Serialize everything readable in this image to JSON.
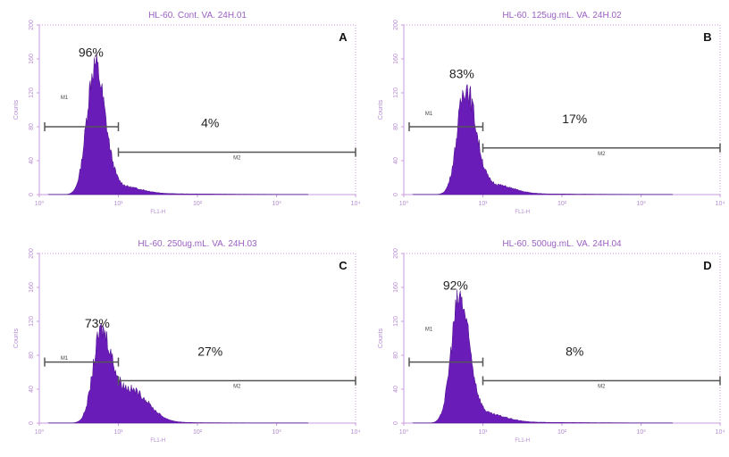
{
  "chart_data": [
    {
      "type": "histogram",
      "panel_letter": "A",
      "title": "HL-60. Cont. VA. 24H.01",
      "xlabel": "FL1-H",
      "ylabel": "Counts",
      "x_scale": "log",
      "xlim": [
        1,
        10000
      ],
      "ylim": [
        0,
        200
      ],
      "x_ticks": [
        "10⁰",
        "10¹",
        "10²",
        "10³",
        "10⁴"
      ],
      "y_ticks": [
        "0",
        "40",
        "80",
        "120",
        "160",
        "200"
      ],
      "peak": {
        "x": 5,
        "counts": 150
      },
      "shoulder": 0.05,
      "gates": [
        {
          "name": "M1",
          "x_start": 1,
          "x_end": 10,
          "level": 80,
          "percent": "96%"
        },
        {
          "name": "M2",
          "x_start": 10,
          "x_end": 10000,
          "level": 50,
          "percent": "4%"
        }
      ]
    },
    {
      "type": "histogram",
      "panel_letter": "B",
      "title": "HL-60. 125ug.mL. VA. 24H.02",
      "xlabel": "FL1-H",
      "ylabel": "Counts",
      "x_scale": "log",
      "xlim": [
        1,
        10000
      ],
      "ylim": [
        0,
        200
      ],
      "x_ticks": [
        "10⁰",
        "10¹",
        "10²",
        "10³",
        "10⁴"
      ],
      "y_ticks": [
        "0",
        "40",
        "80",
        "120",
        "160",
        "200"
      ],
      "peak": {
        "x": 6,
        "counts": 125
      },
      "shoulder": 0.08,
      "gates": [
        {
          "name": "M1",
          "x_start": 1,
          "x_end": 10,
          "level": 80,
          "percent": "83%"
        },
        {
          "name": "M2",
          "x_start": 10,
          "x_end": 10000,
          "level": 55,
          "percent": "17%"
        }
      ]
    },
    {
      "type": "histogram",
      "panel_letter": "C",
      "title": "HL-60. 250ug.mL. VA. 24H.03",
      "xlabel": "FL1-H",
      "ylabel": "Counts",
      "x_scale": "log",
      "xlim": [
        1,
        10000
      ],
      "ylim": [
        0,
        200
      ],
      "x_ticks": [
        "10⁰",
        "10¹",
        "10²",
        "10³",
        "10⁴"
      ],
      "y_ticks": [
        "0",
        "40",
        "80",
        "120",
        "160",
        "200"
      ],
      "peak": {
        "x": 6,
        "counts": 100
      },
      "shoulder": 0.38,
      "gates": [
        {
          "name": "M1",
          "x_start": 1,
          "x_end": 10,
          "level": 72,
          "percent": "73%"
        },
        {
          "name": "M2",
          "x_start": 10,
          "x_end": 10000,
          "level": 50,
          "percent": "27%"
        }
      ]
    },
    {
      "type": "histogram",
      "panel_letter": "D",
      "title": "HL-60. 500ug.mL. VA. 24H.04",
      "xlabel": "FL1-H",
      "ylabel": "Counts",
      "x_scale": "log",
      "xlim": [
        1,
        10000
      ],
      "ylim": [
        0,
        200
      ],
      "x_ticks": [
        "10⁰",
        "10¹",
        "10²",
        "10³",
        "10⁴"
      ],
      "y_ticks": [
        "0",
        "40",
        "80",
        "120",
        "160",
        "200"
      ],
      "peak": {
        "x": 5,
        "counts": 145
      },
      "shoulder": 0.06,
      "gates": [
        {
          "name": "M1",
          "x_start": 1,
          "x_end": 10,
          "level": 72,
          "percent": "92%"
        },
        {
          "name": "M2",
          "x_start": 10,
          "x_end": 10000,
          "level": 50,
          "percent": "8%"
        }
      ]
    }
  ]
}
